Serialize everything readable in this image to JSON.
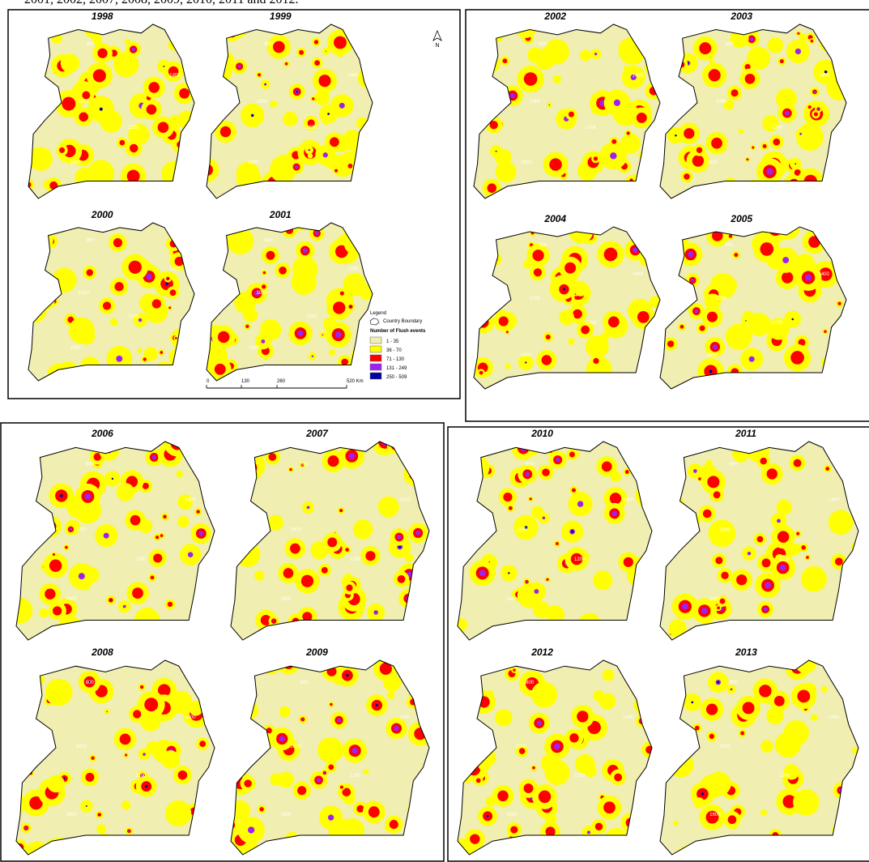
{
  "caption": "2001, 2002, 2007, 2008, 2009, 2010, 2011 and 2012.",
  "north": "N",
  "contour_labels": [
    "800",
    "1000",
    "1200",
    "1400",
    "1600"
  ],
  "maps": [
    {
      "year": "1998"
    },
    {
      "year": "1999"
    },
    {
      "year": "2000"
    },
    {
      "year": "2001"
    },
    {
      "year": "2002"
    },
    {
      "year": "2003"
    },
    {
      "year": "2004"
    },
    {
      "year": "2005"
    },
    {
      "year": "2006"
    },
    {
      "year": "2007"
    },
    {
      "year": "2008"
    },
    {
      "year": "2009"
    },
    {
      "year": "2010"
    },
    {
      "year": "2011"
    },
    {
      "year": "2012"
    },
    {
      "year": "2013"
    }
  ],
  "legend": {
    "title": "Legend",
    "boundary": "Country Boundary",
    "heading": "Number of Flush events",
    "items": [
      {
        "label": "1 - 35",
        "color": "#f0eeb0"
      },
      {
        "label": "36 - 70",
        "color": "#ffff00"
      },
      {
        "label": "71 - 130",
        "color": "#ff0000"
      },
      {
        "label": "131 - 249",
        "color": "#a020f0"
      },
      {
        "label": "250 - 509",
        "color": "#0000a0"
      }
    ]
  },
  "scale": [
    "0",
    "130",
    "260",
    "520 Km"
  ]
}
